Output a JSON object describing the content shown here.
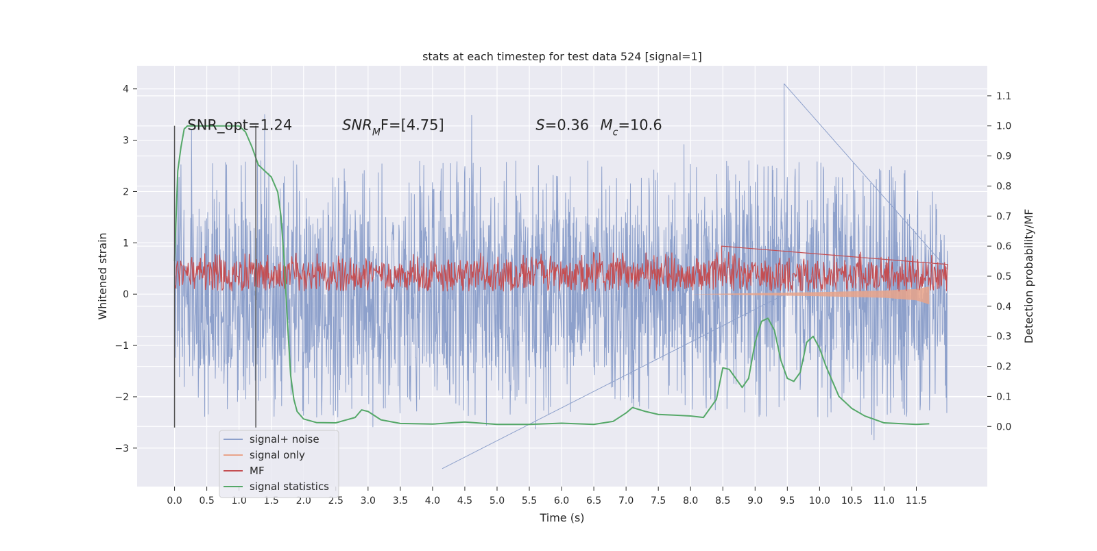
{
  "chart_data": {
    "type": "line",
    "title": "stats at each timestep for test data 524 [signal=1]",
    "xlabel": "Time (s)",
    "ylabel": "Whitened strain",
    "ylabel_right": "Detection probability/MF",
    "xlim": [
      -0.58,
      12.6
    ],
    "ylim": [
      -3.75,
      4.45
    ],
    "ylim_right": [
      -0.2,
      1.2
    ],
    "xticks": [
      "0.0",
      "0.5",
      "1.0",
      "1.5",
      "2.0",
      "2.5",
      "3.0",
      "3.5",
      "4.0",
      "4.5",
      "5.0",
      "5.5",
      "6.0",
      "6.5",
      "7.0",
      "7.5",
      "8.0",
      "8.5",
      "9.0",
      "9.5",
      "10.0",
      "10.5",
      "11.0",
      "11.5"
    ],
    "yticks": [
      "−3",
      "−2",
      "−1",
      "0",
      "1",
      "2",
      "3",
      "4"
    ],
    "yticks_right": [
      "0.0",
      "0.1",
      "0.2",
      "0.3",
      "0.4",
      "0.5",
      "0.6",
      "0.7",
      "0.8",
      "0.9",
      "1.0",
      "1.1"
    ],
    "grid": true,
    "legend": {
      "placement": "lower-left",
      "entries": [
        {
          "label": "signal+ noise",
          "color": "#8da0cb"
        },
        {
          "label": "signal only",
          "color": "#e9a38a"
        },
        {
          "label": "MF",
          "color": "#c44e52"
        },
        {
          "label": "signal statistics",
          "color": "#55a868"
        }
      ]
    },
    "annotations": [
      {
        "text": "SNR_opt=1.24",
        "x": 0.2,
        "y": 3.2
      },
      {
        "text_italic": "SNR",
        "sub": "M",
        "text_rest": "F=[4.75]",
        "x": 2.6,
        "y": 3.2
      },
      {
        "text_italic": "S",
        "text_rest": "=0.36",
        "x": 5.6,
        "y": 3.2
      },
      {
        "text_italic": "M",
        "sub": "c",
        "text_rest": "=10.6",
        "x": 6.6,
        "y": 3.2
      }
    ],
    "vertical_lines": [
      {
        "x": 0.0,
        "ymin": -2.6,
        "ymax": 3.28
      },
      {
        "x": 1.26,
        "ymin": -2.6,
        "ymax": 3.28
      }
    ],
    "series": [
      {
        "name": "signal+ noise",
        "color": "#8da0cb",
        "x_range": [
          0.0,
          11.99
        ],
        "core_band": [
          -1.45,
          1.5
        ],
        "typical_extremes": [
          -2.4,
          2.6
        ],
        "max_value": 4.1,
        "min_value": -3.4
      },
      {
        "name": "signal only",
        "color": "#e9a38a",
        "x": [
          0.0,
          8.0,
          9.0,
          10.0,
          11.0,
          11.5,
          11.7
        ],
        "y": [
          0.0,
          0.0,
          0.02,
          0.04,
          0.07,
          0.1,
          0.15
        ],
        "y_lower": [
          0.0,
          0.0,
          -0.02,
          -0.04,
          -0.07,
          -0.12,
          -0.2
        ]
      },
      {
        "name": "MF",
        "color": "#c44e52",
        "axis": "right",
        "x_range": [
          0.0,
          11.99
        ],
        "band": [
          0.45,
          0.55
        ],
        "max_value": 0.58,
        "min_value": 0.44
      },
      {
        "name": "signal statistics",
        "color": "#55a868",
        "axis": "right",
        "x": [
          0.0,
          0.05,
          0.1,
          0.15,
          0.2,
          0.3,
          0.5,
          0.8,
          1.0,
          1.1,
          1.2,
          1.3,
          1.4,
          1.5,
          1.6,
          1.65,
          1.7,
          1.75,
          1.8,
          1.85,
          1.9,
          2.0,
          2.2,
          2.5,
          2.8,
          2.9,
          3.0,
          3.2,
          3.5,
          4.0,
          4.5,
          5.0,
          5.5,
          6.0,
          6.5,
          6.8,
          7.0,
          7.1,
          7.3,
          7.5,
          7.8,
          8.0,
          8.2,
          8.4,
          8.5,
          8.6,
          8.7,
          8.8,
          8.9,
          9.0,
          9.1,
          9.2,
          9.3,
          9.4,
          9.5,
          9.6,
          9.7,
          9.8,
          9.9,
          10.0,
          10.1,
          10.3,
          10.5,
          10.7,
          11.0,
          11.5,
          11.7
        ],
        "y": [
          0.55,
          0.85,
          0.93,
          0.99,
          1.0,
          1.0,
          1.0,
          1.0,
          1.0,
          0.98,
          0.93,
          0.87,
          0.85,
          0.83,
          0.78,
          0.7,
          0.55,
          0.35,
          0.17,
          0.09,
          0.05,
          0.025,
          0.013,
          0.012,
          0.03,
          0.055,
          0.05,
          0.022,
          0.01,
          0.008,
          0.015,
          0.007,
          0.007,
          0.011,
          0.007,
          0.017,
          0.045,
          0.063,
          0.05,
          0.04,
          0.037,
          0.035,
          0.03,
          0.09,
          0.195,
          0.19,
          0.16,
          0.13,
          0.16,
          0.28,
          0.35,
          0.36,
          0.32,
          0.22,
          0.16,
          0.15,
          0.18,
          0.28,
          0.3,
          0.26,
          0.2,
          0.1,
          0.06,
          0.035,
          0.012,
          0.007,
          0.009
        ]
      }
    ]
  }
}
